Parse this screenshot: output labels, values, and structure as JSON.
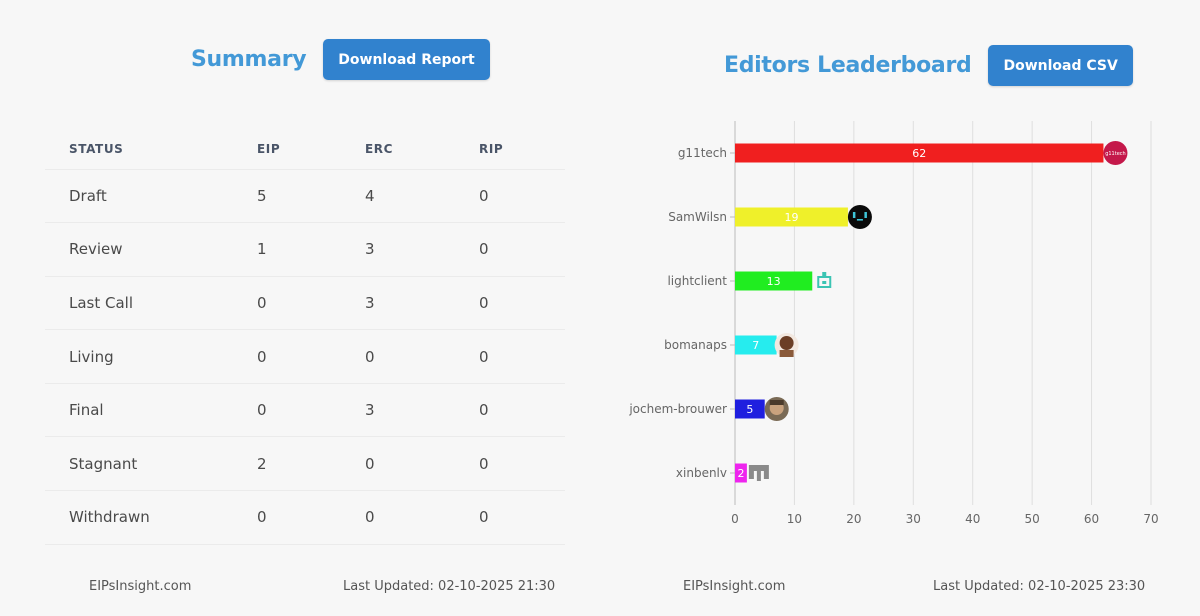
{
  "summary": {
    "title": "Summary",
    "download_label": "Download Report",
    "columns": [
      "STATUS",
      "EIP",
      "ERC",
      "RIP"
    ],
    "rows": [
      [
        "Draft",
        "5",
        "4",
        "0"
      ],
      [
        "Review",
        "1",
        "3",
        "0"
      ],
      [
        "Last Call",
        "0",
        "3",
        "0"
      ],
      [
        "Living",
        "0",
        "0",
        "0"
      ],
      [
        "Final",
        "0",
        "3",
        "0"
      ],
      [
        "Stagnant",
        "2",
        "0",
        "0"
      ],
      [
        "Withdrawn",
        "0",
        "0",
        "0"
      ]
    ],
    "footer_site": "EIPsInsight.com",
    "footer_updated": "Last Updated: 02-10-2025 21:30"
  },
  "leaderboard": {
    "title": "Editors Leaderboard",
    "download_label": "Download CSV",
    "footer_site": "EIPsInsight.com",
    "footer_updated": "Last Updated: 02-10-2025 23:30"
  },
  "chart_data": {
    "type": "bar",
    "orientation": "horizontal",
    "categories": [
      "g11tech",
      "SamWilsn",
      "lightclient",
      "bomanaps",
      "jochem-brouwer",
      "xinbenlv"
    ],
    "values": [
      62,
      19,
      13,
      7,
      5,
      2
    ],
    "colors": [
      "#f01f1f",
      "#eff02a",
      "#20ed20",
      "#26ecee",
      "#1f1fdf",
      "#ee25ee"
    ],
    "xlim": [
      0,
      70
    ],
    "xticks": [
      0,
      10,
      20,
      30,
      40,
      50,
      60,
      70
    ],
    "grid": true,
    "avatar_badge_text": "g11tech"
  }
}
